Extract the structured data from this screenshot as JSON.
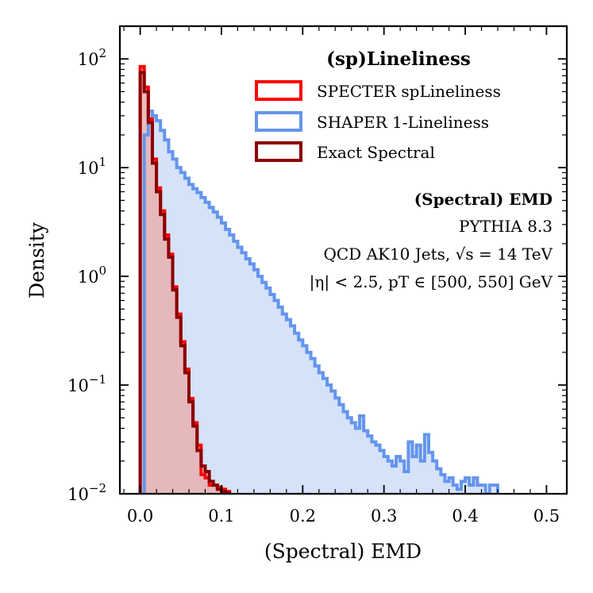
{
  "chart_data": {
    "type": "histogram-step",
    "xlabel": "(Spectral) EMD",
    "ylabel": "Density",
    "xlim": [
      -0.025,
      0.525
    ],
    "ylim": [
      0.01,
      200
    ],
    "yscale": "log",
    "x_ticks": [
      0.0,
      0.1,
      0.2,
      0.3,
      0.4,
      0.5
    ],
    "x_tick_labels": [
      "0.0",
      "0.1",
      "0.2",
      "0.3",
      "0.4",
      "0.5"
    ],
    "y_ticks": [
      0.01,
      0.1,
      1,
      10,
      100
    ],
    "y_tick_labels": [
      {
        "base": "10",
        "exp": "−2"
      },
      {
        "base": "10",
        "exp": "−1"
      },
      {
        "base": "10",
        "exp": "0"
      },
      {
        "base": "10",
        "exp": "1"
      },
      {
        "base": "10",
        "exp": "2"
      }
    ],
    "legend": {
      "title": "(sp)Lineliness",
      "location": "top-right",
      "entries": [
        {
          "label": "SPECTER spLineliness",
          "series": "specter"
        },
        {
          "label": "SHAPER 1-Lineliness",
          "series": "shaper"
        },
        {
          "label": "Exact Spectral",
          "series": "exact"
        }
      ]
    },
    "annotations": [
      {
        "text": "(Spectral) EMD",
        "bold": true
      },
      {
        "text": "PYTHIA 8.3",
        "bold": false
      },
      {
        "text": "QCD AK10 Jets, √s = 14 TeV",
        "bold": false
      },
      {
        "text": "|η| < 2.5, pT ∈ [500, 550] GeV",
        "bold": false
      }
    ],
    "bin_width": 0.005,
    "series": [
      {
        "name": "SHAPER 1-Lineliness",
        "id": "shaper",
        "color": "#6495ED",
        "fill": "#D5E2F8",
        "x_start": 0.005,
        "values": [
          20,
          33,
          30,
          27,
          22,
          18,
          14,
          12,
          10,
          9,
          8,
          7,
          6.4,
          5.9,
          5.3,
          4.8,
          4.3,
          3.9,
          3.5,
          3.1,
          2.7,
          2.4,
          2.1,
          1.85,
          1.65,
          1.45,
          1.3,
          1.15,
          1.0,
          0.88,
          0.78,
          0.68,
          0.6,
          0.52,
          0.45,
          0.4,
          0.35,
          0.3,
          0.26,
          0.23,
          0.2,
          0.175,
          0.15,
          0.13,
          0.115,
          0.1,
          0.088,
          0.076,
          0.066,
          0.057,
          0.05,
          0.045,
          0.04,
          0.052,
          0.038,
          0.034,
          0.03,
          0.028,
          0.025,
          0.022,
          0.02,
          0.018,
          0.022,
          0.02,
          0.016,
          0.03,
          0.022,
          0.028,
          0.02,
          0.035,
          0.024,
          0.02,
          0.017,
          0.015,
          0.013,
          0.014,
          0.012,
          0.011,
          0.013,
          0.014,
          0.012,
          0.014,
          0.012,
          0.012,
          0.01,
          0.012,
          0.012
        ]
      },
      {
        "name": "SPECTER spLineliness",
        "id": "specter",
        "color": "#FF0000",
        "fill": "#E8B0B0",
        "x_start": 0.0,
        "values": [
          85,
          55,
          28,
          12,
          6.5,
          4.0,
          2.4,
          1.6,
          0.8,
          0.45,
          0.25,
          0.14,
          0.075,
          0.045,
          0.028,
          0.015,
          0.014,
          0.012,
          0.012,
          0.0115,
          0.011,
          0.0105
        ]
      },
      {
        "name": "Exact Spectral",
        "id": "exact",
        "color": "#8B0000",
        "fill": "none",
        "x_start": 0.0,
        "values": [
          75,
          50,
          26,
          11,
          6.0,
          3.7,
          2.2,
          1.5,
          0.75,
          0.42,
          0.23,
          0.13,
          0.07,
          0.042,
          0.025,
          0.018,
          0.016,
          0.013,
          0.012,
          0.011,
          0.0105,
          0.0102
        ]
      }
    ]
  }
}
